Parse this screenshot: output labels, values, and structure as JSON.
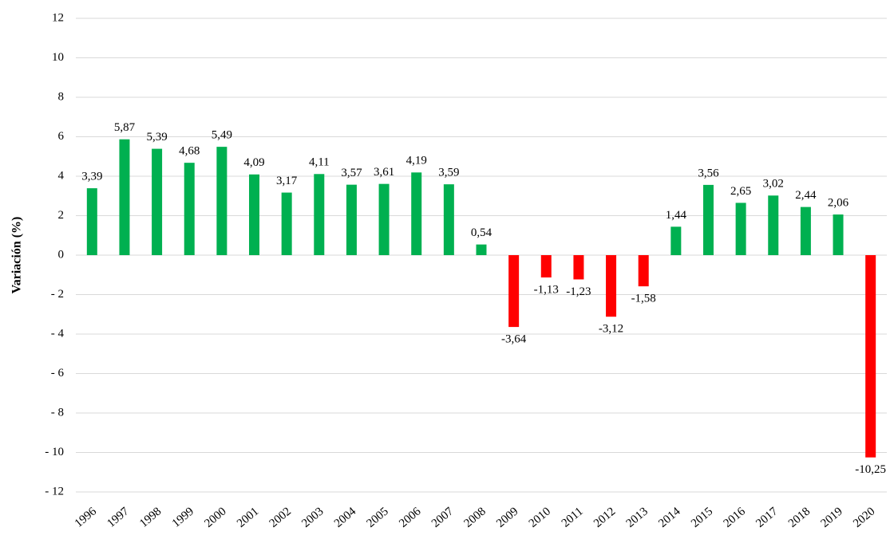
{
  "chart_data": {
    "type": "bar",
    "y_label": "Variación (%)",
    "categories": [
      "1996",
      "1997",
      "1998",
      "1999",
      "2000",
      "2001",
      "2002",
      "2003",
      "2004",
      "2005",
      "2006",
      "2007",
      "2008",
      "2009",
      "2010",
      "2011",
      "2012",
      "2013",
      "2014",
      "2015",
      "2016",
      "2017",
      "2018",
      "2019",
      "2020"
    ],
    "values": [
      3.39,
      5.87,
      5.39,
      4.68,
      5.49,
      4.09,
      3.17,
      4.11,
      3.57,
      3.61,
      4.19,
      3.59,
      0.54,
      -3.64,
      -1.13,
      -1.23,
      -3.12,
      -1.58,
      1.44,
      3.56,
      2.65,
      3.02,
      2.44,
      2.06,
      -10.25
    ],
    "value_labels": [
      "3,39",
      "5,87",
      "5,39",
      "4,68",
      "5,49",
      "4,09",
      "3,17",
      "4,11",
      "3,57",
      "3,61",
      "4,19",
      "3,59",
      "0,54",
      "-3,64",
      "-1,13",
      "-1,23",
      "-3,12",
      "-1,58",
      "1,44",
      "3,56",
      "2,65",
      "3,02",
      "2,44",
      "2,06",
      "-10,25"
    ],
    "color": "#00b050",
    "negative_color": "#ff0000",
    "ylim": [
      -12,
      12
    ],
    "yticks": [
      {
        "value": -12,
        "label": "- 12"
      },
      {
        "value": -10,
        "label": "- 10"
      },
      {
        "value": -8,
        "label": "- 8"
      },
      {
        "value": -6,
        "label": "- 6"
      },
      {
        "value": -4,
        "label": "- 4"
      },
      {
        "value": -2,
        "label": "- 2"
      },
      0,
      2,
      4,
      6,
      8,
      10,
      12
    ],
    "grid": true
  }
}
